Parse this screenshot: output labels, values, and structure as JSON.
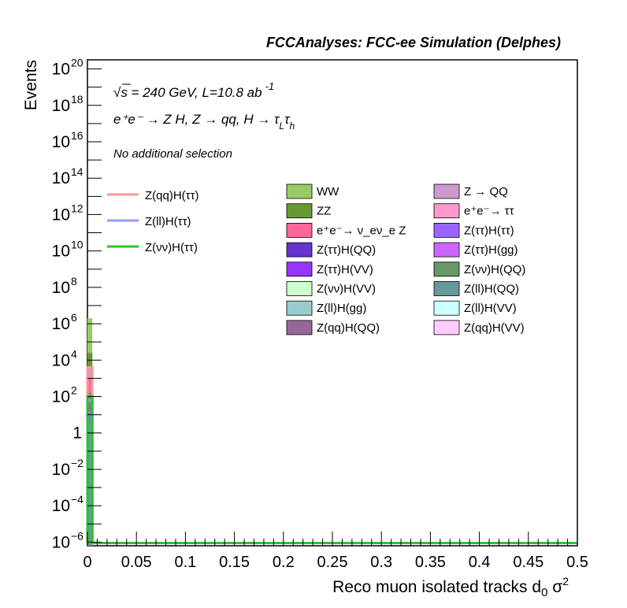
{
  "chart_data": {
    "type": "bar",
    "title": "FCCAnalyses: FCC-ee Simulation (Delphes)",
    "xlabel": "Reco muon isolated tracks d",
    "xlabel_sub": "0",
    "xlabel_tail": " σ",
    "xlabel_sup": "2",
    "ylabel": "Events",
    "xlim": [
      0,
      0.5
    ],
    "ylim_log10": [
      -6.2,
      20.5
    ],
    "y_scale": "log",
    "grid": false,
    "x_ticks": [
      "0",
      "0.05",
      "0.1",
      "0.15",
      "0.2",
      "0.25",
      "0.3",
      "0.35",
      "0.4",
      "0.45",
      "0.5"
    ],
    "y_ticks": [
      {
        "exp": -6,
        "base": "10",
        "sup": "−6"
      },
      {
        "exp": -4,
        "base": "10",
        "sup": "−4"
      },
      {
        "exp": -2,
        "base": "10",
        "sup": "−2"
      },
      {
        "exp": 0,
        "base": "1",
        "sup": ""
      },
      {
        "exp": 2,
        "base": "10",
        "sup": "2"
      },
      {
        "exp": 4,
        "base": "10",
        "sup": "4"
      },
      {
        "exp": 6,
        "base": "10",
        "sup": "6"
      },
      {
        "exp": 8,
        "base": "10",
        "sup": "8"
      },
      {
        "exp": 10,
        "base": "10",
        "sup": "10"
      },
      {
        "exp": 12,
        "base": "10",
        "sup": "12"
      },
      {
        "exp": 14,
        "base": "10",
        "sup": "14"
      },
      {
        "exp": 16,
        "base": "10",
        "sup": "16"
      },
      {
        "exp": 18,
        "base": "10",
        "sup": "18"
      },
      {
        "exp": 20,
        "base": "10",
        "sup": "20"
      }
    ],
    "annotations": {
      "energy": "√s = 240 GeV, L=10.8 ab",
      "energy_sup": "-1",
      "process": "e⁺e⁻ → Z H, Z → qq, H → τ",
      "process_sub1": "L",
      "process_tau": "τ",
      "process_sub2": "h",
      "selection": "No additional selection"
    },
    "stacked_bins": [
      {
        "x": [
          0,
          0.005
        ],
        "stack": [
          {
            "name": "WW",
            "top_exp": 6.3
          },
          {
            "name": "ZZ",
            "top_exp": 4.4
          },
          {
            "name": "Z → QQ",
            "top_exp": 3.6
          },
          {
            "name": "e⁺e⁻→ ν_eν_e Z",
            "top_exp": 3.0
          },
          {
            "name": "Z(νν)H(QQ)",
            "top_exp": 2.2
          },
          {
            "name": "Z(qq)H(QQ)",
            "top_exp": 1.6
          },
          {
            "name": "Z(ττ)H(ττ)",
            "top_exp": 1.2
          },
          {
            "name": "Z(ll)H(QQ)",
            "top_exp": 0.8
          }
        ]
      }
    ],
    "signal_lines": [
      {
        "name": "Z(qq)H(ττ)",
        "color": "#f59a9a",
        "top_exp": 3.6
      },
      {
        "name": "Z(ll)H(ττ)",
        "color": "#9a9af5",
        "top_exp": 1.8
      },
      {
        "name": "Z(νν)H(ττ)",
        "color": "#2fc12f",
        "top_exp": 2.0
      }
    ],
    "legend_signals": [
      {
        "label": "Z(qq)H(ττ)",
        "color": "#f59a9a"
      },
      {
        "label": "Z(ll)H(ττ)",
        "color": "#9a9af5"
      },
      {
        "label": "Z(νν)H(ττ)",
        "color": "#2fc12f"
      }
    ],
    "legend_backgrounds": [
      {
        "label": "WW",
        "color": "#99cc66"
      },
      {
        "label": "Z → QQ",
        "color": "#cc99cc"
      },
      {
        "label": "ZZ",
        "color": "#669933"
      },
      {
        "label": "e⁺e⁻→ ττ",
        "color": "#ff99cc"
      },
      {
        "label": "e⁺e⁻→ ν_eν_e Z",
        "color": "#ff6699"
      },
      {
        "label": "Z(ττ)H(ττ)",
        "color": "#9966ff"
      },
      {
        "label": "Z(ττ)H(QQ)",
        "color": "#6633cc"
      },
      {
        "label": "Z(ττ)H(gg)",
        "color": "#cc66ff"
      },
      {
        "label": "Z(ττ)H(VV)",
        "color": "#9933ff"
      },
      {
        "label": "Z(νν)H(QQ)",
        "color": "#669966"
      },
      {
        "label": "Z(νν)H(VV)",
        "color": "#ccffcc"
      },
      {
        "label": "Z(ll)H(QQ)",
        "color": "#669999"
      },
      {
        "label": "Z(ll)H(gg)",
        "color": "#99cccc"
      },
      {
        "label": "Z(ll)H(VV)",
        "color": "#ccffff"
      },
      {
        "label": "Z(qq)H(QQ)",
        "color": "#996699"
      },
      {
        "label": "Z(qq)H(VV)",
        "color": "#ffccff"
      }
    ]
  }
}
